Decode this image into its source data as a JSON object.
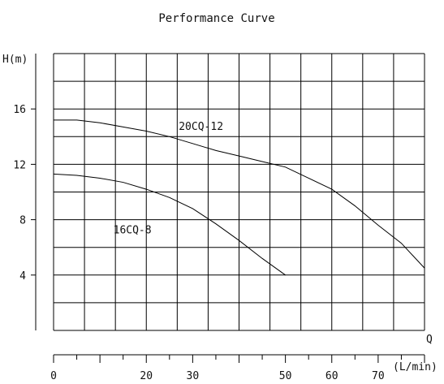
{
  "chart_data": {
    "type": "line",
    "title": "Performance Curve",
    "ylabel": "H(m)",
    "xlabel": "Q",
    "xunit": "(L/min)",
    "xlim": [
      0,
      80
    ],
    "ylim": [
      0,
      20
    ],
    "x_ticks": [
      0,
      20,
      30,
      50,
      60,
      70
    ],
    "y_ticks": [
      4,
      8,
      12,
      16
    ],
    "grid": true,
    "series": [
      {
        "name": "20CQ-12",
        "x": [
          0,
          5,
          10,
          15,
          20,
          25,
          30,
          35,
          40,
          45,
          50,
          55,
          60,
          65,
          70,
          75,
          80
        ],
        "y": [
          15.2,
          15.2,
          15.0,
          14.7,
          14.4,
          14.0,
          13.5,
          13.0,
          12.6,
          12.2,
          11.8,
          11.0,
          10.2,
          9.0,
          7.6,
          6.3,
          4.5
        ]
      },
      {
        "name": "16CQ-8",
        "x": [
          0,
          5,
          10,
          15,
          20,
          25,
          30,
          35,
          40,
          45,
          50
        ],
        "y": [
          11.3,
          11.2,
          11.0,
          10.7,
          10.2,
          9.6,
          8.8,
          7.7,
          6.5,
          5.2,
          4.0
        ]
      }
    ]
  }
}
